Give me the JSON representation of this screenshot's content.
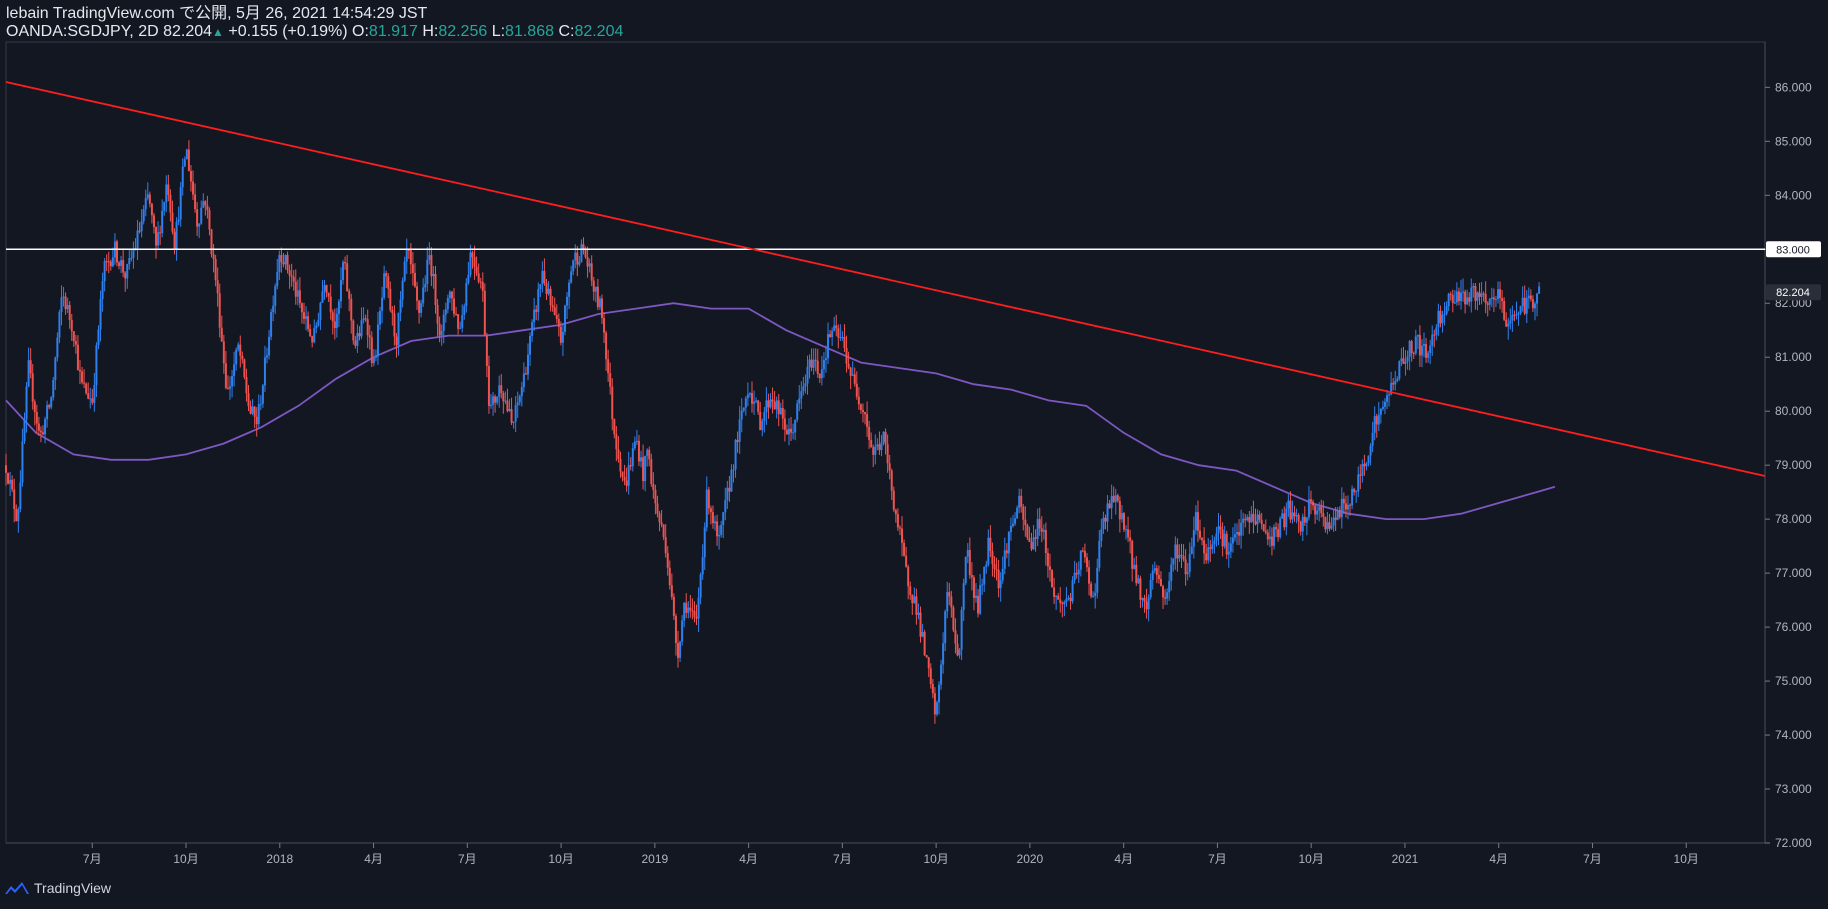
{
  "header": {
    "publish_line": "lebain TradingView.com で公開, 5月 26, 2021 14:54:29 JST",
    "symbol": "OANDA:SGDJPY, 2D",
    "last": "82.204",
    "change": "+0.155 (+0.19%)",
    "o_label": "O:",
    "o_value": "81.917",
    "h_label": "H:",
    "h_value": "82.256",
    "l_label": "L:",
    "l_value": "81.868",
    "c_label": "C:",
    "c_value": "82.204"
  },
  "footer": {
    "brand": "TradingView"
  },
  "colors": {
    "background": "#131722",
    "up": "#2f80ed",
    "down": "#ef5350",
    "trendline": "#ff1e1e",
    "level": "#ffffff",
    "ma": "#7e57c2",
    "grid": "#363a45"
  },
  "chart_data": {
    "type": "candlestick",
    "symbol": "OANDA:SGDJPY",
    "interval": "2D",
    "y_ticks": [
      "86.000",
      "85.000",
      "84.000",
      "83.000",
      "82.000",
      "81.000",
      "80.000",
      "79.000",
      "78.000",
      "77.000",
      "76.000",
      "75.000",
      "74.000",
      "73.000",
      "72.000"
    ],
    "ylim": [
      72,
      86.84
    ],
    "x_ticks": [
      {
        "label": "7月",
        "t": 2017.5
      },
      {
        "label": "10月",
        "t": 2017.75
      },
      {
        "label": "2018",
        "t": 2018.0
      },
      {
        "label": "4月",
        "t": 2018.25
      },
      {
        "label": "7月",
        "t": 2018.5
      },
      {
        "label": "10月",
        "t": 2018.75
      },
      {
        "label": "2019",
        "t": 2019.0
      },
      {
        "label": "4月",
        "t": 2019.25
      },
      {
        "label": "7月",
        "t": 2019.5
      },
      {
        "label": "10月",
        "t": 2019.75
      },
      {
        "label": "2020",
        "t": 2020.0
      },
      {
        "label": "4月",
        "t": 2020.25
      },
      {
        "label": "7月",
        "t": 2020.5
      },
      {
        "label": "10月",
        "t": 2020.75
      },
      {
        "label": "2021",
        "t": 2021.0
      },
      {
        "label": "4月",
        "t": 2021.25
      },
      {
        "label": "7月",
        "t": 2021.5
      },
      {
        "label": "10月",
        "t": 2021.75
      }
    ],
    "xlim": [
      2017.27,
      2021.96
    ],
    "price_path": [
      [
        2017.27,
        79.0
      ],
      [
        2017.3,
        78.0
      ],
      [
        2017.33,
        80.8
      ],
      [
        2017.36,
        79.5
      ],
      [
        2017.39,
        80.2
      ],
      [
        2017.42,
        82.2
      ],
      [
        2017.45,
        81.5
      ],
      [
        2017.47,
        80.5
      ],
      [
        2017.5,
        80.2
      ],
      [
        2017.53,
        82.6
      ],
      [
        2017.56,
        83.0
      ],
      [
        2017.59,
        82.5
      ],
      [
        2017.62,
        83.2
      ],
      [
        2017.65,
        84.0
      ],
      [
        2017.67,
        83.0
      ],
      [
        2017.7,
        84.3
      ],
      [
        2017.72,
        83.1
      ],
      [
        2017.75,
        84.9
      ],
      [
        2017.78,
        83.5
      ],
      [
        2017.8,
        84.0
      ],
      [
        2017.83,
        82.4
      ],
      [
        2017.86,
        80.3
      ],
      [
        2017.89,
        81.2
      ],
      [
        2017.92,
        80.0
      ],
      [
        2017.94,
        79.8
      ],
      [
        2017.96,
        80.8
      ],
      [
        2017.98,
        82.0
      ],
      [
        2018.0,
        83.0
      ],
      [
        2018.03,
        82.5
      ],
      [
        2018.06,
        81.8
      ],
      [
        2018.09,
        81.3
      ],
      [
        2018.12,
        82.5
      ],
      [
        2018.15,
        81.5
      ],
      [
        2018.17,
        82.8
      ],
      [
        2018.2,
        81.2
      ],
      [
        2018.23,
        81.8
      ],
      [
        2018.25,
        80.8
      ],
      [
        2018.28,
        82.5
      ],
      [
        2018.31,
        81.3
      ],
      [
        2018.34,
        83.0
      ],
      [
        2018.37,
        81.8
      ],
      [
        2018.4,
        82.9
      ],
      [
        2018.43,
        81.3
      ],
      [
        2018.45,
        82.3
      ],
      [
        2018.48,
        81.5
      ],
      [
        2018.51,
        83.0
      ],
      [
        2018.54,
        82.3
      ],
      [
        2018.56,
        80.0
      ],
      [
        2018.59,
        80.5
      ],
      [
        2018.62,
        79.7
      ],
      [
        2018.65,
        80.6
      ],
      [
        2018.67,
        81.4
      ],
      [
        2018.7,
        82.6
      ],
      [
        2018.72,
        82.0
      ],
      [
        2018.75,
        81.3
      ],
      [
        2018.78,
        82.8
      ],
      [
        2018.81,
        83.0
      ],
      [
        2018.84,
        82.2
      ],
      [
        2018.86,
        81.8
      ],
      [
        2018.89,
        79.7
      ],
      [
        2018.92,
        78.6
      ],
      [
        2018.95,
        79.5
      ],
      [
        2018.97,
        78.8
      ],
      [
        2018.98,
        79.3
      ],
      [
        2019.0,
        78.3
      ],
      [
        2019.03,
        77.5
      ],
      [
        2019.06,
        75.5
      ],
      [
        2019.08,
        76.5
      ],
      [
        2019.11,
        76.0
      ],
      [
        2019.14,
        78.5
      ],
      [
        2019.17,
        77.5
      ],
      [
        2019.19,
        78.3
      ],
      [
        2019.22,
        79.5
      ],
      [
        2019.25,
        80.5
      ],
      [
        2019.28,
        79.8
      ],
      [
        2019.31,
        80.3
      ],
      [
        2019.33,
        80.0
      ],
      [
        2019.36,
        79.5
      ],
      [
        2019.39,
        80.3
      ],
      [
        2019.42,
        81.0
      ],
      [
        2019.44,
        80.7
      ],
      [
        2019.47,
        81.5
      ],
      [
        2019.5,
        81.3
      ],
      [
        2019.53,
        80.5
      ],
      [
        2019.56,
        80.0
      ],
      [
        2019.58,
        79.2
      ],
      [
        2019.61,
        79.5
      ],
      [
        2019.64,
        78.2
      ],
      [
        2019.67,
        77.0
      ],
      [
        2019.7,
        76.3
      ],
      [
        2019.72,
        75.5
      ],
      [
        2019.75,
        74.3
      ],
      [
        2019.78,
        76.7
      ],
      [
        2019.81,
        75.4
      ],
      [
        2019.83,
        77.5
      ],
      [
        2019.86,
        76.3
      ],
      [
        2019.89,
        77.6
      ],
      [
        2019.92,
        76.8
      ],
      [
        2019.94,
        77.6
      ],
      [
        2019.97,
        78.3
      ],
      [
        2020.0,
        77.5
      ],
      [
        2020.03,
        78.0
      ],
      [
        2020.06,
        76.7
      ],
      [
        2020.08,
        76.4
      ],
      [
        2020.11,
        76.6
      ],
      [
        2020.14,
        77.4
      ],
      [
        2020.17,
        76.5
      ],
      [
        2020.19,
        77.8
      ],
      [
        2020.22,
        78.4
      ],
      [
        2020.25,
        78.0
      ],
      [
        2020.28,
        77.0
      ],
      [
        2020.31,
        76.3
      ],
      [
        2020.33,
        77.2
      ],
      [
        2020.36,
        76.5
      ],
      [
        2020.39,
        77.5
      ],
      [
        2020.42,
        77.0
      ],
      [
        2020.44,
        78.1
      ],
      [
        2020.47,
        77.3
      ],
      [
        2020.5,
        77.9
      ],
      [
        2020.53,
        77.4
      ],
      [
        2020.56,
        77.8
      ],
      [
        2020.58,
        78.0
      ],
      [
        2020.61,
        78.0
      ],
      [
        2020.64,
        77.6
      ],
      [
        2020.67,
        77.9
      ],
      [
        2020.69,
        78.2
      ],
      [
        2020.72,
        77.8
      ],
      [
        2020.75,
        78.3
      ],
      [
        2020.78,
        78.0
      ],
      [
        2020.81,
        77.9
      ],
      [
        2020.83,
        78.2
      ],
      [
        2020.86,
        78.4
      ],
      [
        2020.89,
        79.0
      ],
      [
        2020.92,
        79.8
      ],
      [
        2020.94,
        80.0
      ],
      [
        2020.97,
        80.6
      ],
      [
        2021.0,
        81.0
      ],
      [
        2021.03,
        81.3
      ],
      [
        2021.06,
        81.0
      ],
      [
        2021.08,
        81.6
      ],
      [
        2021.11,
        82.0
      ],
      [
        2021.14,
        82.2
      ],
      [
        2021.17,
        82.1
      ],
      [
        2021.19,
        82.2
      ],
      [
        2021.22,
        81.9
      ],
      [
        2021.25,
        82.2
      ],
      [
        2021.27,
        81.6
      ],
      [
        2021.3,
        81.9
      ],
      [
        2021.33,
        82.0
      ],
      [
        2021.36,
        82.2
      ]
    ],
    "trendline": {
      "t1": 2017.27,
      "p1": 86.1,
      "t2": 2021.96,
      "p2": 78.8
    },
    "horizontal_level": 83.0,
    "moving_average": [
      [
        2017.27,
        80.2
      ],
      [
        2017.35,
        79.6
      ],
      [
        2017.45,
        79.2
      ],
      [
        2017.55,
        79.1
      ],
      [
        2017.65,
        79.1
      ],
      [
        2017.75,
        79.2
      ],
      [
        2017.85,
        79.4
      ],
      [
        2017.95,
        79.7
      ],
      [
        2018.05,
        80.1
      ],
      [
        2018.15,
        80.6
      ],
      [
        2018.25,
        81.0
      ],
      [
        2018.35,
        81.3
      ],
      [
        2018.45,
        81.4
      ],
      [
        2018.55,
        81.4
      ],
      [
        2018.65,
        81.5
      ],
      [
        2018.75,
        81.6
      ],
      [
        2018.85,
        81.8
      ],
      [
        2018.95,
        81.9
      ],
      [
        2019.05,
        82.0
      ],
      [
        2019.15,
        81.9
      ],
      [
        2019.25,
        81.9
      ],
      [
        2019.35,
        81.5
      ],
      [
        2019.45,
        81.2
      ],
      [
        2019.55,
        80.9
      ],
      [
        2019.65,
        80.8
      ],
      [
        2019.75,
        80.7
      ],
      [
        2019.85,
        80.5
      ],
      [
        2019.95,
        80.4
      ],
      [
        2020.05,
        80.2
      ],
      [
        2020.15,
        80.1
      ],
      [
        2020.25,
        79.6
      ],
      [
        2020.35,
        79.2
      ],
      [
        2020.45,
        79.0
      ],
      [
        2020.55,
        78.9
      ],
      [
        2020.65,
        78.6
      ],
      [
        2020.75,
        78.3
      ],
      [
        2020.85,
        78.1
      ],
      [
        2020.95,
        78.0
      ],
      [
        2021.05,
        78.0
      ],
      [
        2021.15,
        78.1
      ],
      [
        2021.25,
        78.3
      ],
      [
        2021.35,
        78.5
      ],
      [
        2021.4,
        78.6
      ]
    ]
  }
}
